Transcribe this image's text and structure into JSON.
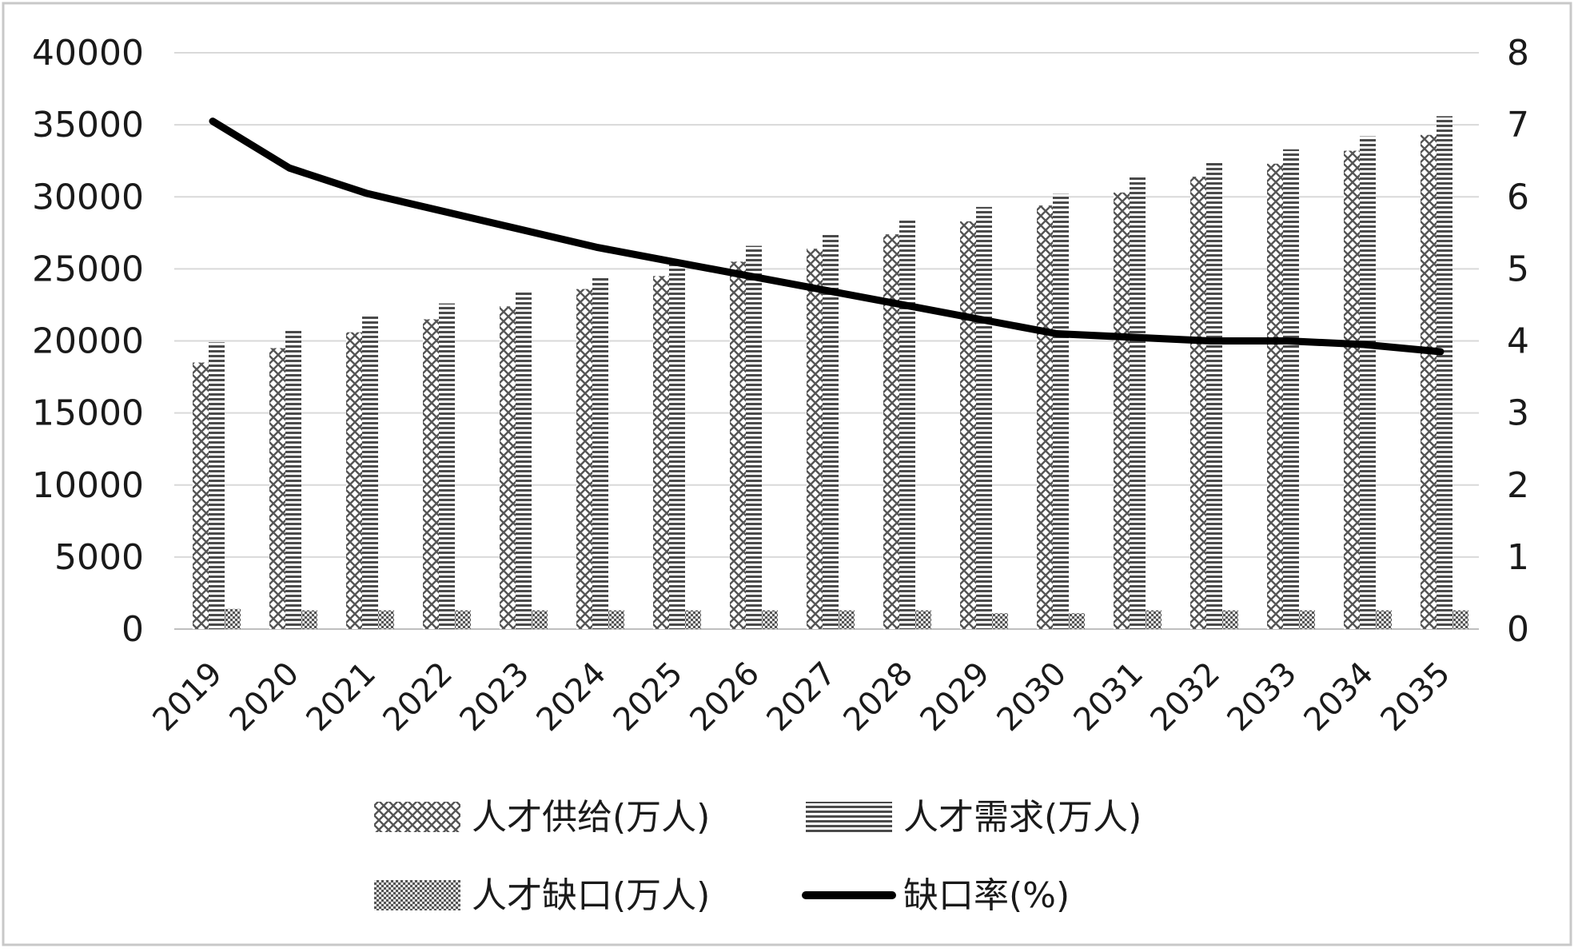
{
  "chart_data": {
    "type": "bar",
    "categories": [
      "2019",
      "2020",
      "2021",
      "2022",
      "2023",
      "2024",
      "2025",
      "2026",
      "2027",
      "2028",
      "2029",
      "2030",
      "2031",
      "2032",
      "2033",
      "2034",
      "2035"
    ],
    "series": [
      {
        "name": "人才供给(万人)",
        "axis": "left",
        "kind": "bar",
        "pattern": "crosshatch",
        "values": [
          18500,
          19500,
          20600,
          21500,
          22400,
          23600,
          24500,
          25500,
          26400,
          27400,
          28300,
          29400,
          30300,
          31400,
          32300,
          33200,
          34300
        ]
      },
      {
        "name": "人才需求(万人)",
        "axis": "left",
        "kind": "bar",
        "pattern": "horizontal-lines",
        "values": [
          19900,
          20800,
          21700,
          22600,
          23500,
          24400,
          25500,
          26600,
          27500,
          28400,
          29300,
          30200,
          31500,
          32400,
          33300,
          34200,
          35600
        ]
      },
      {
        "name": "人才缺口(万人)",
        "axis": "left",
        "kind": "bar",
        "pattern": "fine-checker",
        "values": [
          1400,
          1300,
          1300,
          1300,
          1300,
          1300,
          1300,
          1300,
          1300,
          1300,
          1100,
          1100,
          1300,
          1300,
          1300,
          1300,
          1300
        ]
      },
      {
        "name": "缺口率(%)",
        "axis": "right",
        "kind": "line",
        "values": [
          7.05,
          6.4,
          6.05,
          5.8,
          5.55,
          5.3,
          5.1,
          4.9,
          4.7,
          4.5,
          4.3,
          4.1,
          4.05,
          4.0,
          4.0,
          3.95,
          3.85
        ]
      }
    ],
    "y_left": {
      "min": 0,
      "max": 40000,
      "ticks": [
        0,
        5000,
        10000,
        15000,
        20000,
        25000,
        30000,
        35000,
        40000
      ]
    },
    "y_right": {
      "min": 0,
      "max": 8,
      "ticks": [
        0,
        1,
        2,
        3,
        4,
        5,
        6,
        7,
        8
      ]
    },
    "grid": true,
    "legend_position": "bottom",
    "colors": {
      "bar_fill": "#ffffff",
      "pattern_ink": "#555555",
      "line": "#000000",
      "grid": "#d9d9d9",
      "frame": "#c8c8c8"
    }
  }
}
